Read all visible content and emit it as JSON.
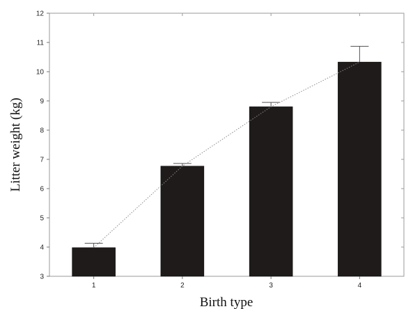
{
  "chart_data": {
    "type": "bar",
    "title": "",
    "xlabel": "Birth type",
    "ylabel": "Litter weight (kg)",
    "categories": [
      "1",
      "2",
      "3",
      "4"
    ],
    "values": [
      3.98,
      6.77,
      8.8,
      10.33
    ],
    "error_upper": [
      4.13,
      6.86,
      8.95,
      10.87
    ],
    "ylim": [
      3,
      12
    ],
    "yticks": [
      "3",
      "4",
      "5",
      "6",
      "7",
      "8",
      "9",
      "10",
      "11",
      "12"
    ],
    "trend_line": "dotted line through bar tops",
    "bar_color": "#1f1b1a",
    "grid": false
  }
}
